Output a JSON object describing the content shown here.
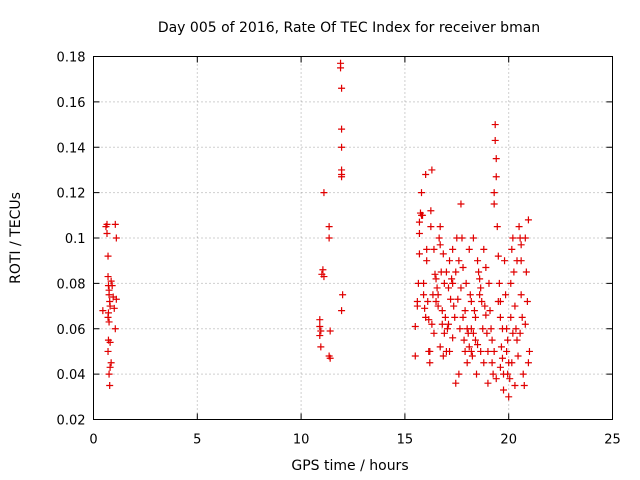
{
  "chart_data": {
    "type": "scatter",
    "title": "Day 005 of 2016, Rate Of TEC Index for receiver bman",
    "xlabel": "GPS time / hours",
    "ylabel": "ROTI / TECUs",
    "xlim": [
      0,
      25
    ],
    "ylim": [
      0.02,
      0.18
    ],
    "xticks": [
      0,
      5,
      10,
      15,
      20,
      25
    ],
    "xtick_labels": [
      "0",
      "5",
      "10",
      "15",
      "20",
      "25"
    ],
    "yticks": [
      0.02,
      0.04,
      0.06,
      0.08,
      0.1,
      0.12,
      0.14,
      0.16,
      0.18
    ],
    "ytick_labels": [
      "0.02",
      "0.04",
      "0.06",
      "0.08",
      "0.1",
      "0.12",
      "0.14",
      "0.16",
      "0.18"
    ],
    "grid": true,
    "marker": "plus",
    "color": "#e00000",
    "series": [
      {
        "name": "ROTI",
        "points": [
          [
            0.45,
            0.068
          ],
          [
            0.6,
            0.105
          ],
          [
            0.65,
            0.106
          ],
          [
            0.65,
            0.102
          ],
          [
            0.7,
            0.092
          ],
          [
            0.7,
            0.083
          ],
          [
            0.72,
            0.079
          ],
          [
            0.75,
            0.077
          ],
          [
            0.75,
            0.075
          ],
          [
            0.78,
            0.072
          ],
          [
            0.8,
            0.07
          ],
          [
            0.72,
            0.067
          ],
          [
            0.7,
            0.065
          ],
          [
            0.75,
            0.063
          ],
          [
            0.72,
            0.055
          ],
          [
            0.8,
            0.054
          ],
          [
            0.7,
            0.05
          ],
          [
            0.85,
            0.045
          ],
          [
            0.8,
            0.043
          ],
          [
            0.75,
            0.04
          ],
          [
            0.78,
            0.035
          ],
          [
            0.85,
            0.081
          ],
          [
            0.9,
            0.079
          ],
          [
            0.95,
            0.074
          ],
          [
            1.0,
            0.069
          ],
          [
            1.05,
            0.106
          ],
          [
            1.1,
            0.1
          ],
          [
            1.1,
            0.073
          ],
          [
            1.05,
            0.06
          ],
          [
            10.9,
            0.064
          ],
          [
            10.9,
            0.061
          ],
          [
            10.95,
            0.059
          ],
          [
            10.9,
            0.057
          ],
          [
            10.95,
            0.052
          ],
          [
            11.0,
            0.084
          ],
          [
            11.05,
            0.086
          ],
          [
            11.1,
            0.083
          ],
          [
            11.1,
            0.12
          ],
          [
            11.35,
            0.105
          ],
          [
            11.35,
            0.1
          ],
          [
            11.4,
            0.059
          ],
          [
            11.35,
            0.048
          ],
          [
            11.4,
            0.047
          ],
          [
            11.9,
            0.177
          ],
          [
            11.9,
            0.175
          ],
          [
            11.95,
            0.166
          ],
          [
            11.95,
            0.148
          ],
          [
            11.95,
            0.14
          ],
          [
            11.95,
            0.13
          ],
          [
            11.95,
            0.128
          ],
          [
            11.95,
            0.127
          ],
          [
            12.0,
            0.075
          ],
          [
            11.95,
            0.068
          ],
          [
            15.5,
            0.061
          ],
          [
            15.5,
            0.048
          ],
          [
            15.6,
            0.07
          ],
          [
            15.6,
            0.072
          ],
          [
            15.65,
            0.08
          ],
          [
            15.7,
            0.093
          ],
          [
            15.7,
            0.102
          ],
          [
            15.7,
            0.107
          ],
          [
            15.75,
            0.111
          ],
          [
            15.8,
            0.11
          ],
          [
            15.8,
            0.12
          ],
          [
            15.85,
            0.11
          ],
          [
            15.9,
            0.075
          ],
          [
            15.9,
            0.08
          ],
          [
            15.95,
            0.069
          ],
          [
            16.0,
            0.128
          ],
          [
            16.0,
            0.065
          ],
          [
            16.05,
            0.09
          ],
          [
            16.05,
            0.095
          ],
          [
            16.1,
            0.072
          ],
          [
            16.15,
            0.064
          ],
          [
            16.15,
            0.05
          ],
          [
            16.2,
            0.045
          ],
          [
            16.2,
            0.05
          ],
          [
            16.25,
            0.112
          ],
          [
            16.25,
            0.105
          ],
          [
            16.3,
            0.13
          ],
          [
            16.3,
            0.062
          ],
          [
            16.35,
            0.075
          ],
          [
            16.4,
            0.058
          ],
          [
            16.45,
            0.084
          ],
          [
            16.5,
            0.082
          ],
          [
            16.55,
            0.078
          ],
          [
            16.6,
            0.075
          ],
          [
            16.6,
            0.07
          ],
          [
            16.65,
            0.1
          ],
          [
            16.7,
            0.105
          ],
          [
            16.7,
            0.097
          ],
          [
            16.75,
            0.085
          ],
          [
            16.8,
            0.068
          ],
          [
            16.8,
            0.062
          ],
          [
            16.85,
            0.093
          ],
          [
            16.9,
            0.08
          ],
          [
            16.95,
            0.065
          ],
          [
            17.0,
            0.05
          ],
          [
            17.0,
            0.085
          ],
          [
            17.05,
            0.06
          ],
          [
            17.1,
            0.078
          ],
          [
            17.15,
            0.09
          ],
          [
            17.15,
            0.05
          ],
          [
            17.2,
            0.073
          ],
          [
            17.25,
            0.082
          ],
          [
            17.3,
            0.095
          ],
          [
            17.3,
            0.08
          ],
          [
            17.35,
            0.07
          ],
          [
            17.4,
            0.065
          ],
          [
            17.45,
            0.036
          ],
          [
            17.45,
            0.085
          ],
          [
            17.5,
            0.1
          ],
          [
            17.55,
            0.073
          ],
          [
            17.6,
            0.09
          ],
          [
            17.65,
            0.06
          ],
          [
            17.7,
            0.115
          ],
          [
            17.75,
            0.1
          ],
          [
            17.8,
            0.087
          ],
          [
            17.8,
            0.065
          ],
          [
            17.85,
            0.055
          ],
          [
            17.9,
            0.05
          ],
          [
            17.95,
            0.08
          ],
          [
            18.0,
            0.06
          ],
          [
            18.0,
            0.045
          ],
          [
            18.05,
            0.058
          ],
          [
            18.1,
            0.095
          ],
          [
            18.15,
            0.075
          ],
          [
            18.2,
            0.06
          ],
          [
            18.2,
            0.05
          ],
          [
            18.25,
            0.048
          ],
          [
            18.3,
            0.1
          ],
          [
            18.35,
            0.068
          ],
          [
            18.4,
            0.055
          ],
          [
            18.45,
            0.04
          ],
          [
            18.5,
            0.09
          ],
          [
            18.55,
            0.085
          ],
          [
            18.6,
            0.082
          ],
          [
            18.65,
            0.078
          ],
          [
            18.65,
            0.05
          ],
          [
            18.7,
            0.072
          ],
          [
            18.75,
            0.06
          ],
          [
            18.8,
            0.045
          ],
          [
            18.8,
            0.095
          ],
          [
            18.85,
            0.07
          ],
          [
            18.9,
            0.066
          ],
          [
            18.95,
            0.058
          ],
          [
            19.0,
            0.05
          ],
          [
            19.0,
            0.036
          ],
          [
            19.05,
            0.08
          ],
          [
            19.1,
            0.068
          ],
          [
            19.15,
            0.06
          ],
          [
            19.2,
            0.055
          ],
          [
            19.25,
            0.04
          ],
          [
            19.3,
            0.12
          ],
          [
            19.3,
            0.115
          ],
          [
            19.35,
            0.15
          ],
          [
            19.35,
            0.143
          ],
          [
            19.4,
            0.135
          ],
          [
            19.4,
            0.127
          ],
          [
            19.45,
            0.105
          ],
          [
            19.5,
            0.092
          ],
          [
            19.55,
            0.08
          ],
          [
            19.6,
            0.072
          ],
          [
            19.6,
            0.065
          ],
          [
            19.65,
            0.052
          ],
          [
            19.7,
            0.047
          ],
          [
            19.75,
            0.04
          ],
          [
            19.75,
            0.033
          ],
          [
            19.8,
            0.09
          ],
          [
            19.85,
            0.075
          ],
          [
            19.9,
            0.06
          ],
          [
            19.95,
            0.055
          ],
          [
            20.0,
            0.045
          ],
          [
            20.0,
            0.03
          ],
          [
            20.05,
            0.038
          ],
          [
            20.1,
            0.065
          ],
          [
            20.1,
            0.08
          ],
          [
            20.15,
            0.095
          ],
          [
            20.2,
            0.1
          ],
          [
            20.25,
            0.085
          ],
          [
            20.3,
            0.07
          ],
          [
            20.35,
            0.06
          ],
          [
            20.4,
            0.055
          ],
          [
            20.45,
            0.048
          ],
          [
            20.5,
            0.105
          ],
          [
            20.55,
            0.1
          ],
          [
            20.6,
            0.09
          ],
          [
            20.6,
            0.075
          ],
          [
            20.65,
            0.065
          ],
          [
            20.7,
            0.04
          ],
          [
            20.75,
            0.035
          ],
          [
            20.8,
            0.1
          ],
          [
            20.85,
            0.085
          ],
          [
            20.9,
            0.072
          ],
          [
            20.95,
            0.045
          ],
          [
            20.95,
            0.108
          ],
          [
            20.6,
            0.097
          ],
          [
            20.4,
            0.09
          ],
          [
            20.2,
            0.058
          ],
          [
            19.9,
            0.05
          ],
          [
            19.7,
            0.06
          ],
          [
            19.5,
            0.072
          ],
          [
            19.2,
            0.045
          ],
          [
            18.9,
            0.087
          ],
          [
            18.6,
            0.075
          ],
          [
            18.4,
            0.065
          ],
          [
            18.2,
            0.072
          ],
          [
            17.9,
            0.068
          ],
          [
            17.7,
            0.078
          ],
          [
            17.3,
            0.056
          ],
          [
            17.1,
            0.062
          ],
          [
            16.9,
            0.058
          ],
          [
            16.7,
            0.052
          ],
          [
            16.5,
            0.072
          ],
          [
            16.4,
            0.095
          ],
          [
            20.3,
            0.035
          ],
          [
            20.55,
            0.058
          ],
          [
            20.8,
            0.062
          ],
          [
            21.0,
            0.05
          ],
          [
            20.15,
            0.045
          ],
          [
            19.95,
            0.04
          ],
          [
            19.6,
            0.043
          ],
          [
            19.4,
            0.038
          ],
          [
            19.3,
            0.05
          ],
          [
            18.5,
            0.053
          ],
          [
            18.3,
            0.058
          ],
          [
            18.1,
            0.052
          ],
          [
            17.6,
            0.04
          ],
          [
            16.85,
            0.048
          ]
        ]
      }
    ]
  }
}
